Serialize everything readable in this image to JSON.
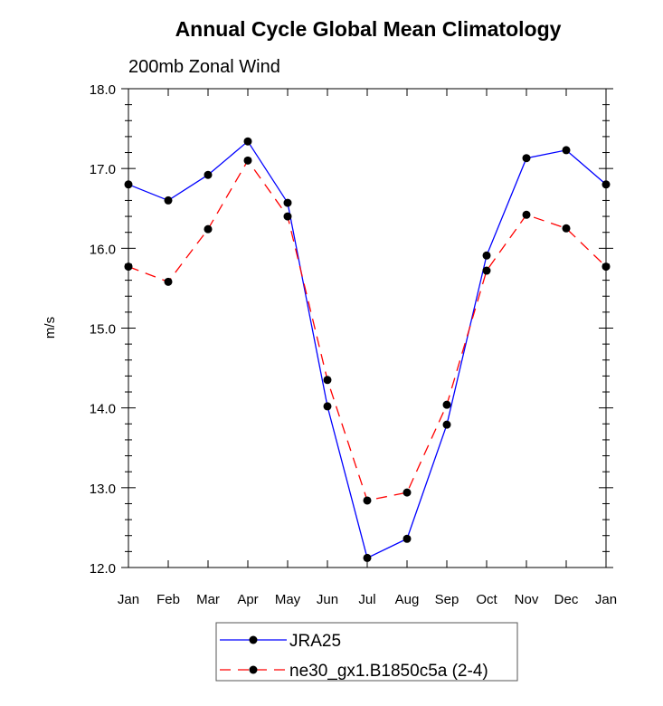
{
  "chart_data": {
    "type": "line",
    "title": "Annual Cycle Global Mean Climatology",
    "subtitle": "200mb Zonal Wind",
    "xlabel": "",
    "ylabel": "m/s",
    "categories": [
      "Jan",
      "Feb",
      "Mar",
      "Apr",
      "May",
      "Jun",
      "Jul",
      "Aug",
      "Sep",
      "Oct",
      "Nov",
      "Dec",
      "Jan"
    ],
    "ylim": [
      12.0,
      18.0
    ],
    "yticks": [
      "12.0",
      "13.0",
      "14.0",
      "15.0",
      "16.0",
      "17.0",
      "18.0"
    ],
    "grid": false,
    "legend_position": "bottom",
    "series": [
      {
        "name": "JRA25",
        "color": "#0000ff",
        "dash": "solid",
        "values": [
          16.8,
          16.6,
          16.92,
          17.34,
          16.57,
          14.02,
          12.12,
          12.36,
          13.79,
          15.91,
          17.13,
          17.23,
          16.8
        ]
      },
      {
        "name": "ne30_gx1.B1850c5a (2-4)",
        "color": "#ff0000",
        "dash": "dashed",
        "values": [
          15.77,
          15.58,
          16.24,
          17.1,
          16.4,
          14.35,
          12.84,
          12.94,
          14.04,
          15.72,
          16.42,
          16.25,
          15.77
        ]
      }
    ]
  }
}
